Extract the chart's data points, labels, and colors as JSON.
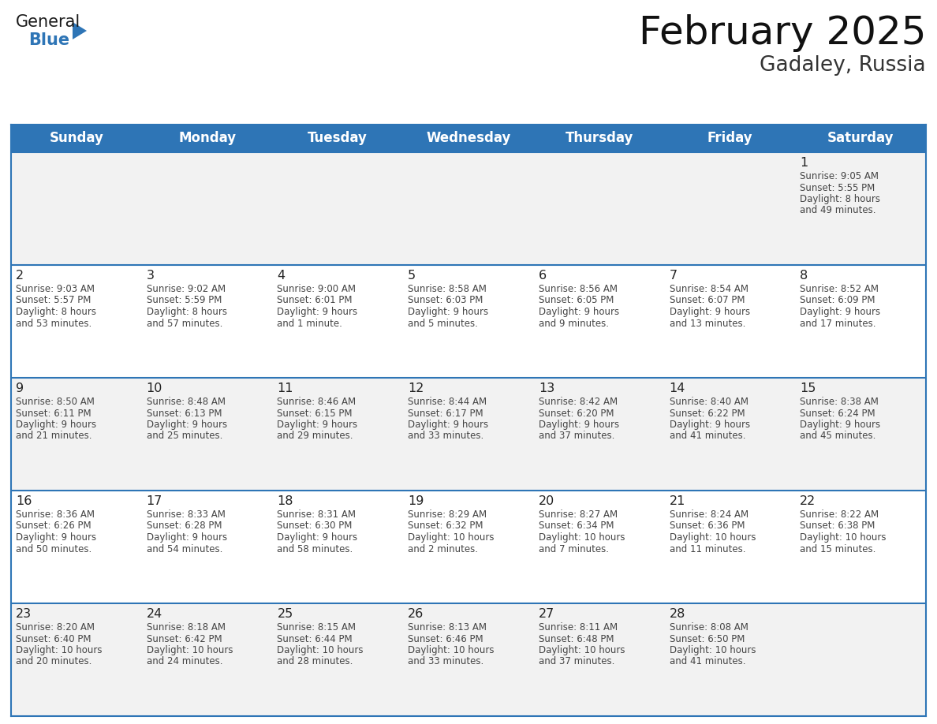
{
  "title": "February 2025",
  "subtitle": "Gadaley, Russia",
  "header_bg": "#2E75B6",
  "header_text_color": "#FFFFFF",
  "border_color": "#2E75B6",
  "cell_bg_odd": "#F2F2F2",
  "cell_bg_even": "#FFFFFF",
  "text_color": "#333333",
  "info_text_color": "#444444",
  "day_headers": [
    "Sunday",
    "Monday",
    "Tuesday",
    "Wednesday",
    "Thursday",
    "Friday",
    "Saturday"
  ],
  "calendar_data": [
    [
      null,
      null,
      null,
      null,
      null,
      null,
      {
        "day": "1",
        "sunrise": "9:05 AM",
        "sunset": "5:55 PM",
        "daylight": "8 hours\nand 49 minutes."
      }
    ],
    [
      {
        "day": "2",
        "sunrise": "9:03 AM",
        "sunset": "5:57 PM",
        "daylight": "8 hours\nand 53 minutes."
      },
      {
        "day": "3",
        "sunrise": "9:02 AM",
        "sunset": "5:59 PM",
        "daylight": "8 hours\nand 57 minutes."
      },
      {
        "day": "4",
        "sunrise": "9:00 AM",
        "sunset": "6:01 PM",
        "daylight": "9 hours\nand 1 minute."
      },
      {
        "day": "5",
        "sunrise": "8:58 AM",
        "sunset": "6:03 PM",
        "daylight": "9 hours\nand 5 minutes."
      },
      {
        "day": "6",
        "sunrise": "8:56 AM",
        "sunset": "6:05 PM",
        "daylight": "9 hours\nand 9 minutes."
      },
      {
        "day": "7",
        "sunrise": "8:54 AM",
        "sunset": "6:07 PM",
        "daylight": "9 hours\nand 13 minutes."
      },
      {
        "day": "8",
        "sunrise": "8:52 AM",
        "sunset": "6:09 PM",
        "daylight": "9 hours\nand 17 minutes."
      }
    ],
    [
      {
        "day": "9",
        "sunrise": "8:50 AM",
        "sunset": "6:11 PM",
        "daylight": "9 hours\nand 21 minutes."
      },
      {
        "day": "10",
        "sunrise": "8:48 AM",
        "sunset": "6:13 PM",
        "daylight": "9 hours\nand 25 minutes."
      },
      {
        "day": "11",
        "sunrise": "8:46 AM",
        "sunset": "6:15 PM",
        "daylight": "9 hours\nand 29 minutes."
      },
      {
        "day": "12",
        "sunrise": "8:44 AM",
        "sunset": "6:17 PM",
        "daylight": "9 hours\nand 33 minutes."
      },
      {
        "day": "13",
        "sunrise": "8:42 AM",
        "sunset": "6:20 PM",
        "daylight": "9 hours\nand 37 minutes."
      },
      {
        "day": "14",
        "sunrise": "8:40 AM",
        "sunset": "6:22 PM",
        "daylight": "9 hours\nand 41 minutes."
      },
      {
        "day": "15",
        "sunrise": "8:38 AM",
        "sunset": "6:24 PM",
        "daylight": "9 hours\nand 45 minutes."
      }
    ],
    [
      {
        "day": "16",
        "sunrise": "8:36 AM",
        "sunset": "6:26 PM",
        "daylight": "9 hours\nand 50 minutes."
      },
      {
        "day": "17",
        "sunrise": "8:33 AM",
        "sunset": "6:28 PM",
        "daylight": "9 hours\nand 54 minutes."
      },
      {
        "day": "18",
        "sunrise": "8:31 AM",
        "sunset": "6:30 PM",
        "daylight": "9 hours\nand 58 minutes."
      },
      {
        "day": "19",
        "sunrise": "8:29 AM",
        "sunset": "6:32 PM",
        "daylight": "10 hours\nand 2 minutes."
      },
      {
        "day": "20",
        "sunrise": "8:27 AM",
        "sunset": "6:34 PM",
        "daylight": "10 hours\nand 7 minutes."
      },
      {
        "day": "21",
        "sunrise": "8:24 AM",
        "sunset": "6:36 PM",
        "daylight": "10 hours\nand 11 minutes."
      },
      {
        "day": "22",
        "sunrise": "8:22 AM",
        "sunset": "6:38 PM",
        "daylight": "10 hours\nand 15 minutes."
      }
    ],
    [
      {
        "day": "23",
        "sunrise": "8:20 AM",
        "sunset": "6:40 PM",
        "daylight": "10 hours\nand 20 minutes."
      },
      {
        "day": "24",
        "sunrise": "8:18 AM",
        "sunset": "6:42 PM",
        "daylight": "10 hours\nand 24 minutes."
      },
      {
        "day": "25",
        "sunrise": "8:15 AM",
        "sunset": "6:44 PM",
        "daylight": "10 hours\nand 28 minutes."
      },
      {
        "day": "26",
        "sunrise": "8:13 AM",
        "sunset": "6:46 PM",
        "daylight": "10 hours\nand 33 minutes."
      },
      {
        "day": "27",
        "sunrise": "8:11 AM",
        "sunset": "6:48 PM",
        "daylight": "10 hours\nand 37 minutes."
      },
      {
        "day": "28",
        "sunrise": "8:08 AM",
        "sunset": "6:50 PM",
        "daylight": "10 hours\nand 41 minutes."
      },
      null
    ]
  ]
}
